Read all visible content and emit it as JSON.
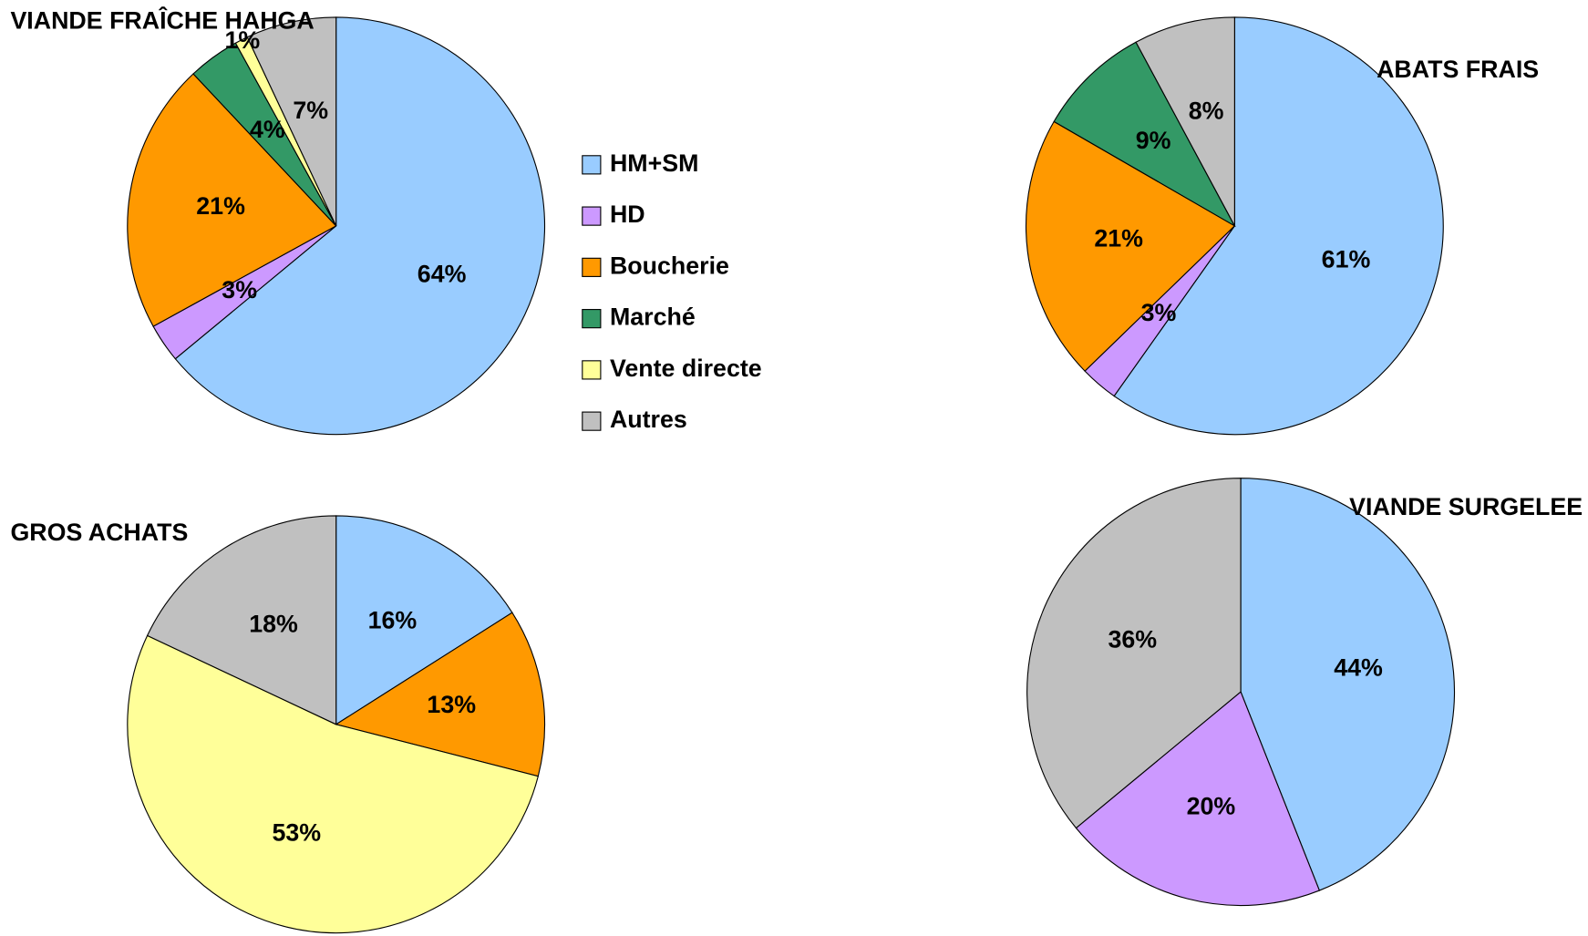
{
  "chart_data": [
    {
      "type": "pie",
      "title": "VIANDE FRAÎCHE HAHGA",
      "categories": [
        "HM+SM",
        "HD",
        "Boucherie",
        "Marché",
        "Vente directe",
        "Autres"
      ],
      "values": [
        64,
        3,
        21,
        4,
        1,
        7
      ],
      "value_labels": [
        "64%",
        "3%",
        "21%",
        "4%",
        "1%",
        "7%"
      ],
      "colors": [
        "#99ccff",
        "#cc99ff",
        "#ff9900",
        "#339966",
        "#ffff99",
        "#c0c0c0"
      ],
      "legend": "right"
    },
    {
      "type": "pie",
      "title": "ABATS FRAIS",
      "categories": [
        "HM+SM",
        "HD",
        "Boucherie",
        "Marché",
        "Autres"
      ],
      "values": [
        61,
        3,
        21,
        9,
        8
      ],
      "value_labels": [
        "61%",
        "3%",
        "21%",
        "9%",
        "8%"
      ],
      "colors": [
        "#99ccff",
        "#cc99ff",
        "#ff9900",
        "#339966",
        "#c0c0c0"
      ]
    },
    {
      "type": "pie",
      "title": "GROS ACHATS",
      "categories": [
        "HM+SM",
        "Boucherie",
        "Vente directe",
        "Autres"
      ],
      "values": [
        16,
        13,
        53,
        18
      ],
      "value_labels": [
        "16%",
        "13%",
        "53%",
        "18%"
      ],
      "colors": [
        "#99ccff",
        "#ff9900",
        "#ffff99",
        "#c0c0c0"
      ]
    },
    {
      "type": "pie",
      "title": "VIANDE SURGELEE",
      "categories": [
        "HM+SM",
        "HD",
        "Autres"
      ],
      "values": [
        44,
        20,
        36
      ],
      "value_labels": [
        "44%",
        "20%",
        "36%"
      ],
      "colors": [
        "#99ccff",
        "#cc99ff",
        "#c0c0c0"
      ]
    }
  ]
}
